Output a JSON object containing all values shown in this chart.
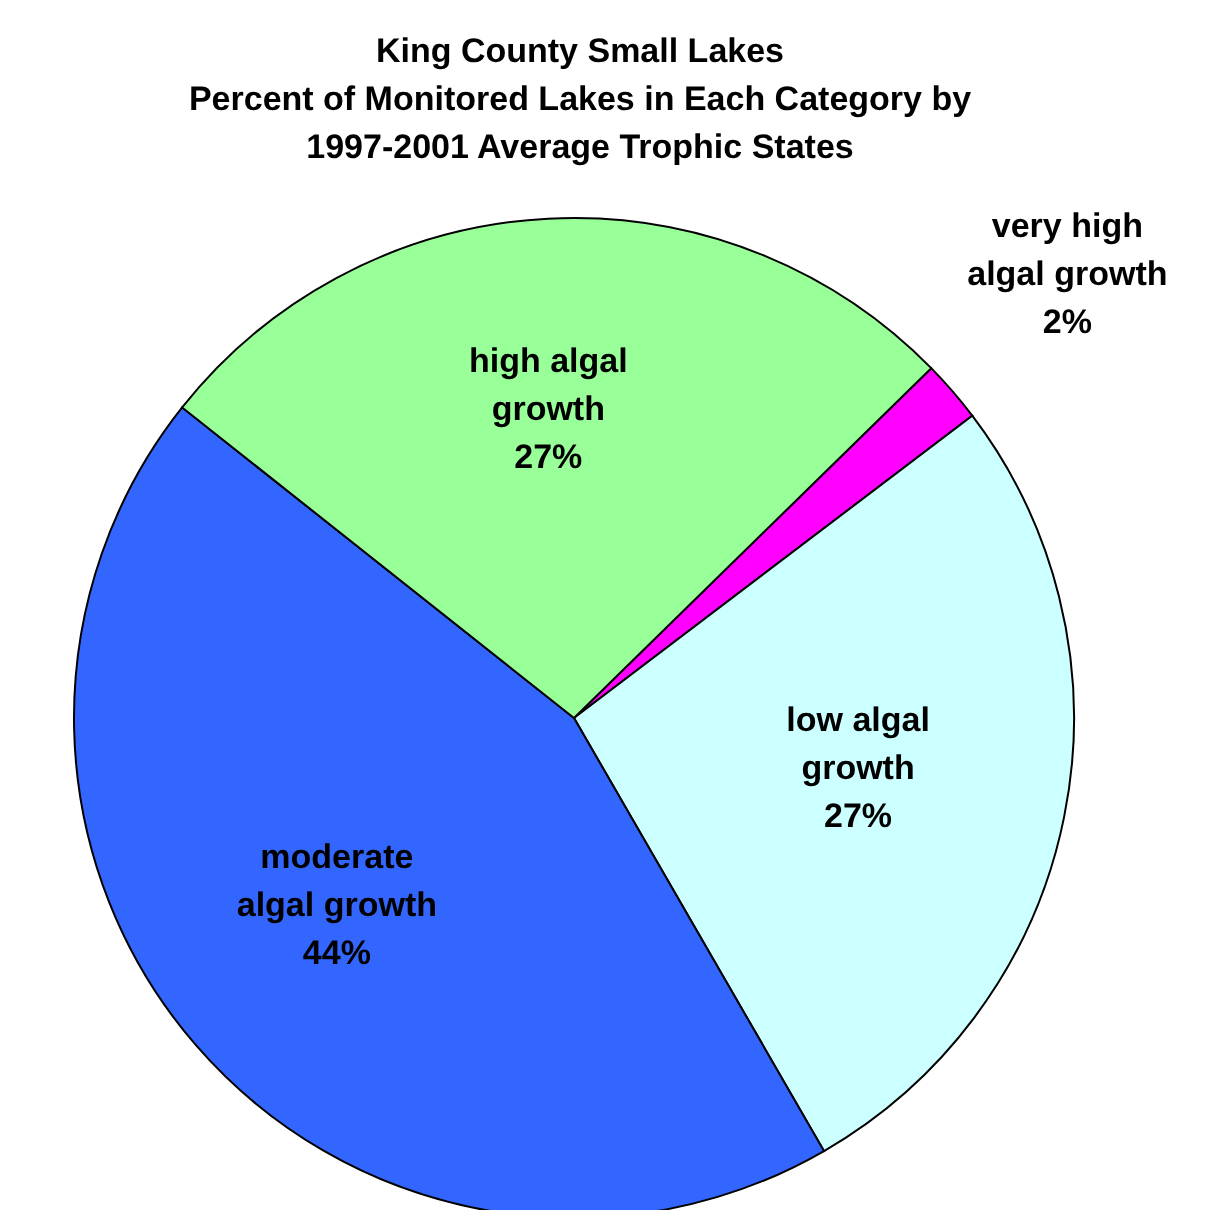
{
  "chart_data": {
    "type": "pie",
    "title": "King County Small Lakes\nPercent of Monitored Lakes in Each Category by\n1997-2001 Average Trophic States",
    "categories": [
      "very high algal growth",
      "low algal growth",
      "moderate algal growth",
      "high algal growth"
    ],
    "values": [
      2,
      27,
      44,
      27
    ],
    "value_labels": [
      "2%",
      "27%",
      "44%",
      "27%"
    ],
    "colors": [
      "#ff00ff",
      "#ccffff",
      "#3366ff",
      "#99ff99"
    ],
    "legend": false
  }
}
